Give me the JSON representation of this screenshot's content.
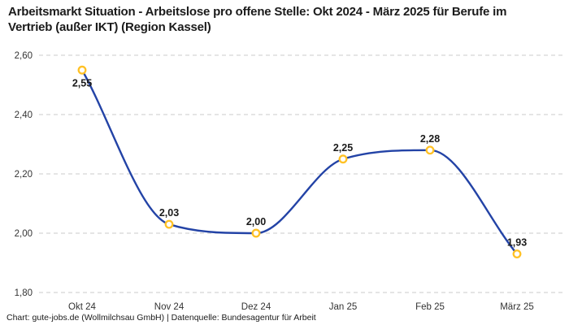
{
  "title": "Arbeitsmarkt Situation - Arbeitslose pro offene Stelle: Okt 2024 - März 2025 für Berufe im Vertrieb (außer IKT) (Region Kassel)",
  "footer": "Chart: gute-jobs.de (Wollmilchsau GmbH) | Datenquelle: Bundesagentur für Arbeit",
  "chart_data": {
    "type": "line",
    "title": "Arbeitsmarkt Situation - Arbeitslose pro offene Stelle: Okt 2024 - März 2025 für Berufe im Vertrieb (außer IKT) (Region Kassel)",
    "categories": [
      "Okt 24",
      "Nov 24",
      "Dez 24",
      "Jan 25",
      "Feb 25",
      "März 25"
    ],
    "values": [
      2.55,
      2.03,
      2.0,
      2.25,
      2.28,
      1.93
    ],
    "point_labels": [
      "2,55",
      "2,03",
      "2,00",
      "2,25",
      "2,28",
      "1,93"
    ],
    "xlabel": "",
    "ylabel": "",
    "ylim": [
      1.8,
      2.6
    ],
    "y_ticks": {
      "labels": [
        "2,60",
        "2,40",
        "2,20",
        "2,00",
        "1,80"
      ],
      "values": [
        2.6,
        2.4,
        2.2,
        2.0,
        1.8
      ]
    },
    "grid": "horizontal-dashed",
    "legend": "none",
    "curve": "monotone",
    "colors": {
      "line": "#2343A6",
      "marker_ring": "#FFC125",
      "marker_fill": "#FFFFFF",
      "grid": "#CBCBCB",
      "tick_text": "#333333",
      "point_label_text": "#1A1A1A"
    }
  }
}
